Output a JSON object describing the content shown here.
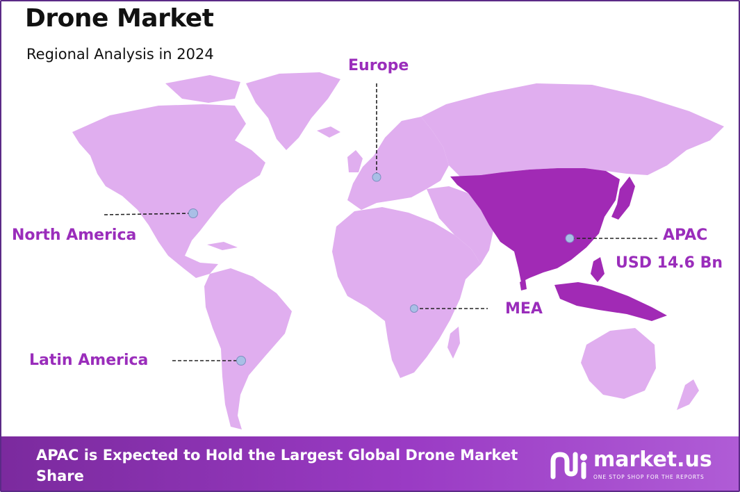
{
  "header": {
    "title": "Drone Market",
    "subtitle": "Regional Analysis in 2024"
  },
  "regions": {
    "europe": {
      "label": "Europe"
    },
    "north_america": {
      "label": "North America"
    },
    "apac": {
      "label": "APAC",
      "value": "USD 14.6 Bn"
    },
    "mea": {
      "label": "MEA"
    },
    "latin_america": {
      "label": "Latin America"
    }
  },
  "footer": {
    "statement": "APAC is Expected to Hold the Largest Global Drone Market Share"
  },
  "brand": {
    "name": "market.us",
    "tagline": "ONE STOP SHOP FOR THE REPORTS"
  },
  "colors": {
    "land": "#e0aeef",
    "highlight": "#a12ab5",
    "label": "#9a2dbb",
    "marker": "#a9bfe6",
    "footer": "#8a33b4"
  }
}
